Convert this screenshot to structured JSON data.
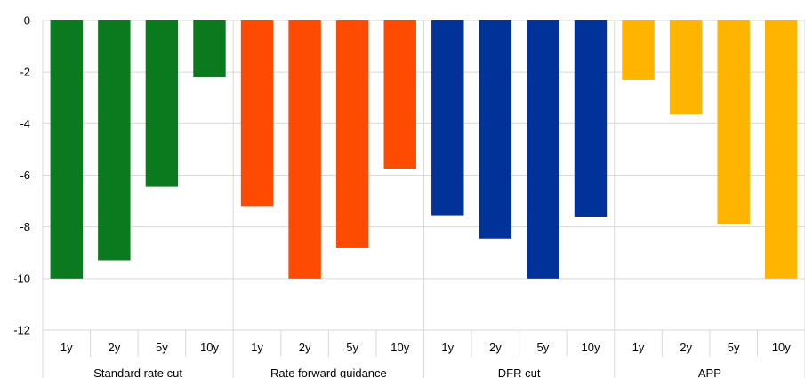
{
  "chart_data": {
    "type": "bar",
    "categories": [
      "1y",
      "2y",
      "5y",
      "10y"
    ],
    "groups": [
      {
        "label": "Standard rate cut",
        "color": "#0b7a1e",
        "values": [
          -10.0,
          -9.3,
          -6.45,
          -2.2
        ]
      },
      {
        "label": "Rate forward guidance",
        "color": "#ff4b00",
        "values": [
          -7.2,
          -10.0,
          -8.8,
          -5.75
        ]
      },
      {
        "label": "DFR cut",
        "color": "#003299",
        "values": [
          -7.55,
          -8.45,
          -10.0,
          -7.6
        ]
      },
      {
        "label": "APP",
        "color": "#ffb400",
        "values": [
          -2.3,
          -3.65,
          -7.9,
          -10.0
        ]
      }
    ],
    "yticks": [
      0,
      -2,
      -4,
      -6,
      -8,
      -10,
      -12
    ],
    "ylim": [
      -12,
      0
    ],
    "grid": true
  }
}
